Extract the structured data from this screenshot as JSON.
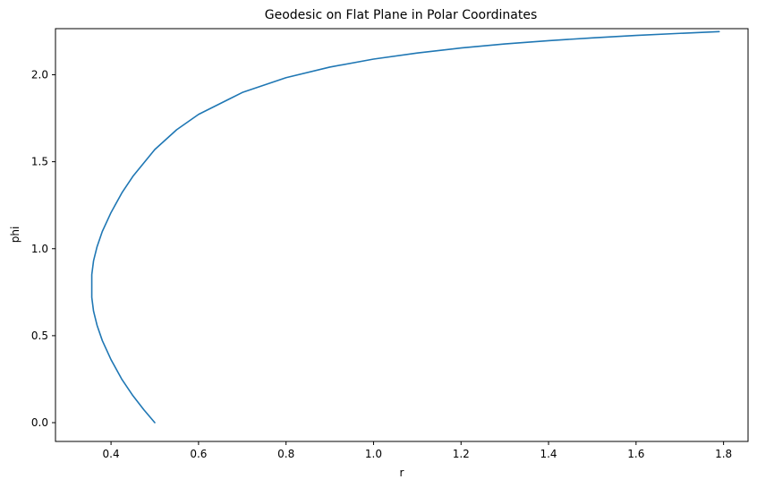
{
  "chart_data": {
    "type": "line",
    "title": "Geodesic on Flat Plane in Polar Coordinates",
    "xlabel": "r",
    "ylabel": "phi",
    "xlim": [
      0.273,
      1.856
    ],
    "ylim": [
      -0.108,
      2.265
    ],
    "xticks": [
      "0.4",
      "0.6",
      "0.8",
      "1.0",
      "1.2",
      "1.4",
      "1.6",
      "1.8"
    ],
    "yticks": [
      "0.0",
      "0.5",
      "1.0",
      "1.5",
      "2.0"
    ],
    "grid": false,
    "legend": false,
    "series": [
      {
        "color": "#1f77b4",
        "x": [
          0.5,
          0.475,
          0.45,
          0.425,
          0.4,
          0.38,
          0.368,
          0.36,
          0.356,
          0.356,
          0.36,
          0.368,
          0.38,
          0.4,
          0.425,
          0.45,
          0.5,
          0.55,
          0.6,
          0.7,
          0.8,
          0.9,
          1.0,
          1.1,
          1.2,
          1.3,
          1.4,
          1.5,
          1.6,
          1.7,
          1.79
        ],
        "y": [
          0.0,
          0.074,
          0.155,
          0.248,
          0.362,
          0.472,
          0.56,
          0.641,
          0.72,
          0.851,
          0.93,
          1.011,
          1.099,
          1.208,
          1.322,
          1.416,
          1.57,
          1.684,
          1.772,
          1.898,
          1.983,
          2.044,
          2.09,
          2.125,
          2.154,
          2.177,
          2.196,
          2.212,
          2.226,
          2.238,
          2.248
        ]
      }
    ]
  }
}
